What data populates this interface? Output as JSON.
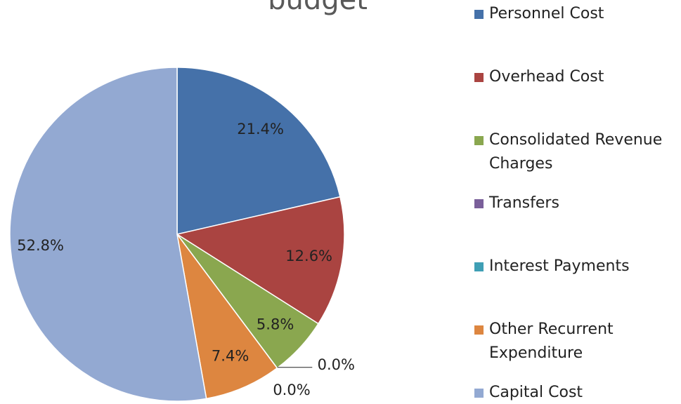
{
  "chart_data": {
    "type": "pie",
    "title": "budget",
    "categories": [
      "Personnel Cost",
      "Overhead Cost",
      "Consolidated Revenue Charges",
      "Transfers",
      "Interest Payments",
      "Other Recurrent Expenditure",
      "Capital Cost"
    ],
    "values": [
      21.4,
      12.6,
      5.8,
      0.0,
      0.0,
      7.4,
      52.8
    ],
    "value_labels": [
      "21.4%",
      "12.6%",
      "5.8%",
      "0.0%",
      "0.0%",
      "7.4%",
      "52.8%"
    ],
    "colors": [
      "#4571a9",
      "#aa4441",
      "#8aa74f",
      "#7a5f9a",
      "#3f9fb5",
      "#dd8640",
      "#93a9d2"
    ],
    "legend": "right"
  }
}
